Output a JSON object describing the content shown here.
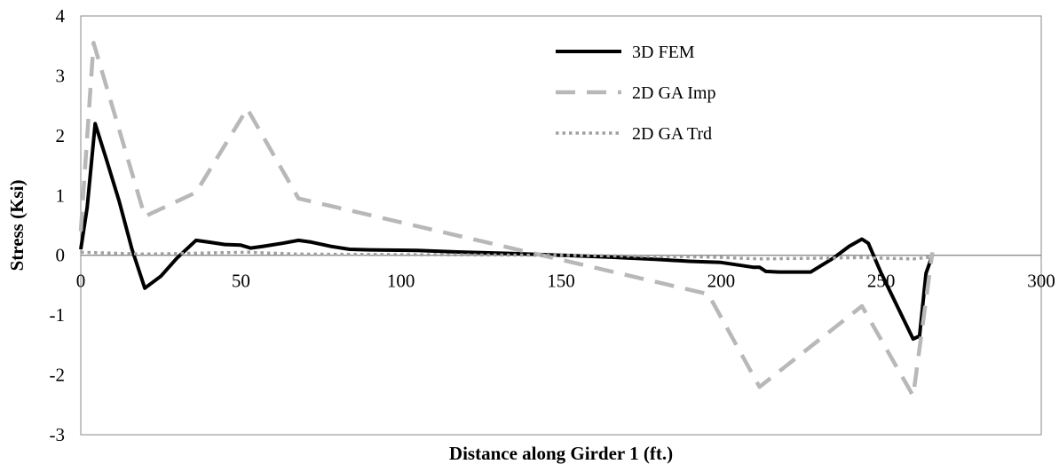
{
  "chart_data": {
    "type": "line",
    "title": "",
    "xlabel": "Distance along Girder  1 (ft.)",
    "ylabel": "Stress (Ksi)",
    "xlim": [
      0,
      300
    ],
    "ylim": [
      -3,
      4
    ],
    "xticks": [
      0,
      50,
      100,
      150,
      200,
      250,
      300
    ],
    "yticks": [
      4,
      3,
      2,
      1,
      0,
      -1,
      -2,
      -3
    ],
    "grid": false,
    "legend_position": "top-center",
    "series": [
      {
        "name": "3D FEM",
        "color": "#000000",
        "dash": "solid",
        "points": [
          [
            0,
            0.1
          ],
          [
            2,
            0.8
          ],
          [
            4.5,
            2.2
          ],
          [
            8,
            1.6
          ],
          [
            12,
            0.9
          ],
          [
            16,
            0.1
          ],
          [
            20,
            -0.55
          ],
          [
            25,
            -0.35
          ],
          [
            30,
            -0.05
          ],
          [
            36,
            0.25
          ],
          [
            40,
            0.22
          ],
          [
            45,
            0.18
          ],
          [
            50,
            0.17
          ],
          [
            53,
            0.12
          ],
          [
            57,
            0.15
          ],
          [
            63,
            0.2
          ],
          [
            68,
            0.25
          ],
          [
            72,
            0.22
          ],
          [
            78,
            0.15
          ],
          [
            84,
            0.1
          ],
          [
            90,
            0.09
          ],
          [
            105,
            0.08
          ],
          [
            120,
            0.05
          ],
          [
            135,
            0.03
          ],
          [
            150,
            0.0
          ],
          [
            165,
            -0.03
          ],
          [
            180,
            -0.07
          ],
          [
            190,
            -0.1
          ],
          [
            200,
            -0.12
          ],
          [
            210,
            -0.2
          ],
          [
            212,
            -0.2
          ],
          [
            214,
            -0.27
          ],
          [
            218,
            -0.28
          ],
          [
            228,
            -0.28
          ],
          [
            235,
            -0.05
          ],
          [
            240,
            0.15
          ],
          [
            244,
            0.27
          ],
          [
            246,
            0.2
          ],
          [
            250,
            -0.3
          ],
          [
            255,
            -0.85
          ],
          [
            260,
            -1.4
          ],
          [
            262,
            -1.35
          ],
          [
            264,
            -0.3
          ],
          [
            266,
            0.0
          ]
        ]
      },
      {
        "name": "2D GA Imp",
        "color": "#b8b8b8",
        "dash": "dashed",
        "points": [
          [
            0,
            0.4
          ],
          [
            4,
            3.55
          ],
          [
            20,
            0.65
          ],
          [
            36,
            1.05
          ],
          [
            52,
            2.45
          ],
          [
            68,
            0.95
          ],
          [
            196,
            -0.65
          ],
          [
            212,
            -2.2
          ],
          [
            244,
            -0.85
          ],
          [
            260,
            -2.35
          ],
          [
            266,
            0.05
          ]
        ]
      },
      {
        "name": "2D GA Trd",
        "color": "#a0a0a0",
        "dash": "dotted",
        "points": [
          [
            0,
            0.05
          ],
          [
            20,
            0.02
          ],
          [
            52,
            0.05
          ],
          [
            68,
            0.02
          ],
          [
            100,
            0.01
          ],
          [
            150,
            0.0
          ],
          [
            196,
            -0.03
          ],
          [
            212,
            -0.06
          ],
          [
            244,
            -0.04
          ],
          [
            260,
            -0.06
          ],
          [
            266,
            -0.03
          ]
        ]
      }
    ]
  }
}
